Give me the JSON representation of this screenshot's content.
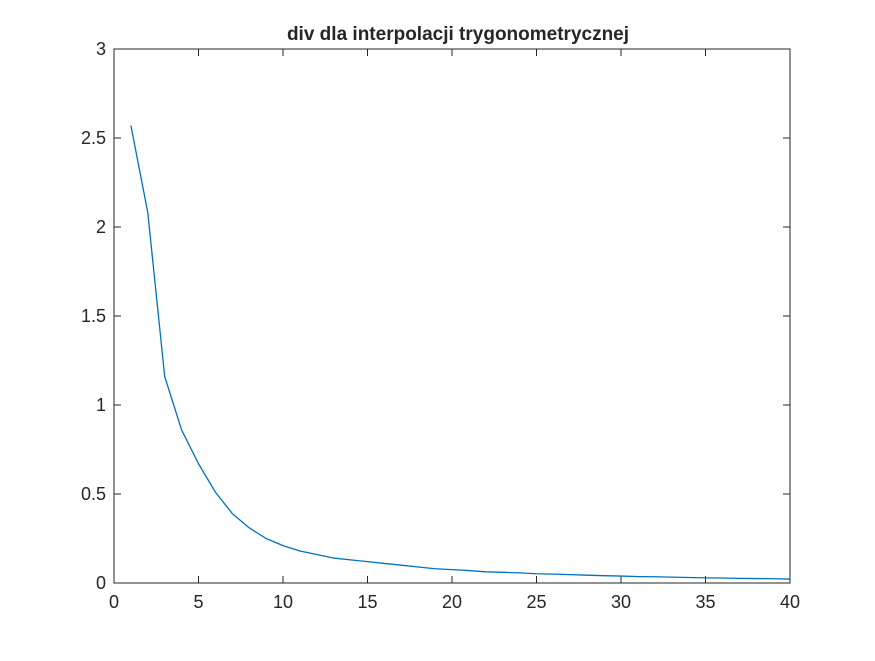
{
  "chart_data": {
    "type": "line",
    "title": "div dla interpolacji trygonometrycznej",
    "xlabel": "",
    "ylabel": "",
    "xlim": [
      0,
      40
    ],
    "ylim": [
      0,
      3
    ],
    "x_ticks": [
      0,
      5,
      10,
      15,
      20,
      25,
      30,
      35,
      40
    ],
    "x_tick_labels": [
      "0",
      "5",
      "10",
      "15",
      "20",
      "25",
      "30",
      "35",
      "40"
    ],
    "y_ticks": [
      0,
      0.5,
      1,
      1.5,
      2,
      2.5,
      3
    ],
    "y_tick_labels": [
      "0",
      "0.5",
      "1",
      "1.5",
      "2",
      "2.5",
      "3"
    ],
    "grid": false,
    "legend": "none",
    "series": [
      {
        "color": "#0072BD",
        "x": [
          1,
          2,
          3,
          4,
          5,
          6,
          7,
          8,
          9,
          10,
          11,
          12,
          13,
          14,
          15,
          16,
          17,
          18,
          19,
          20,
          21,
          22,
          23,
          24,
          25,
          26,
          27,
          28,
          29,
          30,
          31,
          32,
          33,
          34,
          35,
          36,
          37,
          38,
          39,
          40
        ],
        "y": [
          2.57,
          2.08,
          1.16,
          0.86,
          0.67,
          0.51,
          0.39,
          0.31,
          0.25,
          0.21,
          0.18,
          0.16,
          0.14,
          0.13,
          0.12,
          0.11,
          0.1,
          0.09,
          0.08,
          0.075,
          0.07,
          0.063,
          0.06,
          0.057,
          0.052,
          0.05,
          0.047,
          0.044,
          0.041,
          0.039,
          0.036,
          0.035,
          0.033,
          0.031,
          0.029,
          0.028,
          0.026,
          0.025,
          0.024,
          0.022
        ]
      }
    ]
  }
}
